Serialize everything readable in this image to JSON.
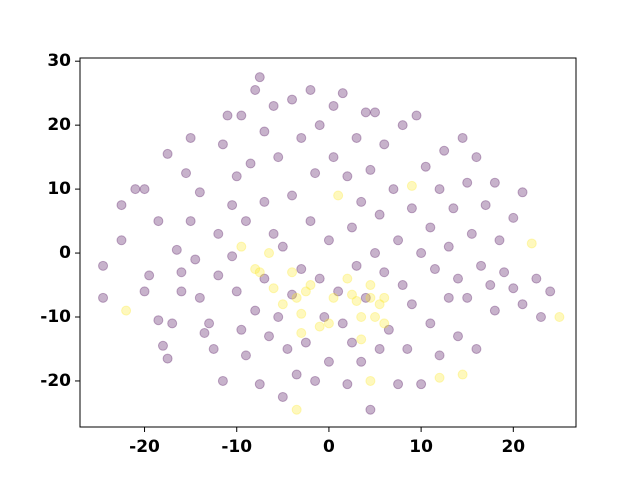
{
  "chart_data": {
    "type": "scatter",
    "xlim": [
      -27,
      26.8
    ],
    "ylim": [
      -27.2,
      30.5
    ],
    "xticks": [
      -20,
      -10,
      0,
      10,
      20
    ],
    "yticks": [
      -20,
      -10,
      0,
      10,
      20,
      30
    ],
    "alpha": 0.3,
    "series": [
      {
        "color": "#440154",
        "x": [
          -24.5,
          -24.5,
          -22.5,
          -22.5,
          -21,
          -20,
          -19.5,
          -20,
          -18.5,
          -18.5,
          -18,
          -17.5,
          -17,
          -17.5,
          -16.5,
          -16,
          -16,
          -15.5,
          -15,
          -15,
          -14.5,
          -14,
          -14,
          -13.5,
          -13,
          -12.5,
          -12,
          -12,
          -11.5,
          -11.5,
          -11,
          -10.5,
          -10.5,
          -10,
          -10,
          -9.5,
          -9.5,
          -9,
          -9,
          -8.5,
          -8,
          -8,
          -7.5,
          -7.5,
          -7,
          -7,
          -7,
          -6.5,
          -6,
          -6,
          -5.5,
          -5.5,
          -5,
          -5,
          -4.5,
          -4,
          -4,
          -4,
          -3.5,
          -3,
          -3,
          -2.5,
          -2,
          -2,
          -1.5,
          -1.5,
          -1,
          -1,
          -0.5,
          0,
          0,
          0.5,
          0.5,
          1,
          1.5,
          1.5,
          2,
          2,
          2.5,
          2.5,
          3,
          3,
          3.5,
          3.5,
          4,
          4,
          4.5,
          4.5,
          5,
          5,
          5.5,
          5.5,
          6,
          6,
          6.5,
          7,
          7.5,
          7.5,
          8,
          8,
          8.5,
          9,
          9,
          9.5,
          10,
          10,
          10.5,
          11,
          11,
          11.5,
          12,
          12,
          12.5,
          13,
          13,
          13.5,
          14,
          14,
          14.5,
          15,
          15,
          15.5,
          16,
          16,
          16.5,
          17,
          17.5,
          18,
          18,
          18.5,
          19,
          20,
          20,
          21,
          21,
          22.5,
          23,
          24
        ],
        "values": [
          -2,
          -7,
          7.5,
          2,
          10,
          10,
          -3.5,
          -6,
          5,
          -10.5,
          -14.5,
          -16.5,
          -11,
          15.5,
          0.5,
          -3,
          -6,
          12.5,
          18,
          5,
          -1,
          -7,
          9.5,
          -12.5,
          -11,
          -15,
          3,
          -3.5,
          17,
          -20,
          21.5,
          7.5,
          -0.5,
          -6,
          12,
          -12,
          21.5,
          5,
          -16,
          14,
          25.5,
          -9,
          27.5,
          -20.5,
          19,
          8,
          -4,
          -13,
          23,
          3,
          -10,
          15,
          -22.5,
          1,
          -15,
          24,
          9,
          -6.5,
          -19,
          18,
          -2.5,
          -14,
          25.5,
          5,
          -20,
          12.5,
          -4,
          20,
          -10,
          2,
          -17,
          23,
          15,
          -6,
          25,
          -11,
          -20.5,
          12,
          4,
          -14,
          18,
          -2,
          -17,
          8,
          -7,
          22,
          -24.5,
          13,
          0,
          22,
          -15,
          6,
          -3,
          17,
          -12,
          10,
          -20.5,
          2,
          -5,
          20,
          -15,
          7,
          -8,
          21.5,
          -20.5,
          0,
          13.5,
          -11,
          4,
          -2.5,
          -16,
          10,
          16,
          -7,
          1,
          7,
          -13,
          -4,
          18,
          11,
          -7,
          3,
          15,
          -15,
          -2,
          7.5,
          -5,
          11,
          -9,
          2,
          -3,
          -5.5,
          5.5,
          -8,
          9.5,
          -4,
          -10,
          -6
        ]
      },
      {
        "color": "#fde725",
        "x": [
          -22,
          -9.5,
          -8,
          -7.5,
          -6.5,
          -6,
          -5,
          -4,
          -3.5,
          -3,
          -3,
          -2.5,
          -3.5,
          -2,
          -1,
          0,
          0.5,
          1,
          2,
          2.5,
          3,
          3.5,
          3.5,
          4.5,
          4.5,
          5,
          5.5,
          6,
          6,
          9,
          4.5,
          12,
          14.5,
          22,
          25
        ],
        "values": [
          -9,
          1,
          -2.5,
          -3,
          0,
          -5.5,
          -8,
          -3,
          -7,
          -9.5,
          -12.5,
          -6,
          -24.5,
          -5,
          -11.5,
          -11,
          -7,
          9,
          -4,
          -6.5,
          -7.5,
          -13.5,
          -10,
          -7,
          -5,
          -10,
          -8,
          -7,
          -11,
          10.5,
          -20,
          -19.5,
          -19,
          1.5,
          -10
        ]
      }
    ]
  }
}
